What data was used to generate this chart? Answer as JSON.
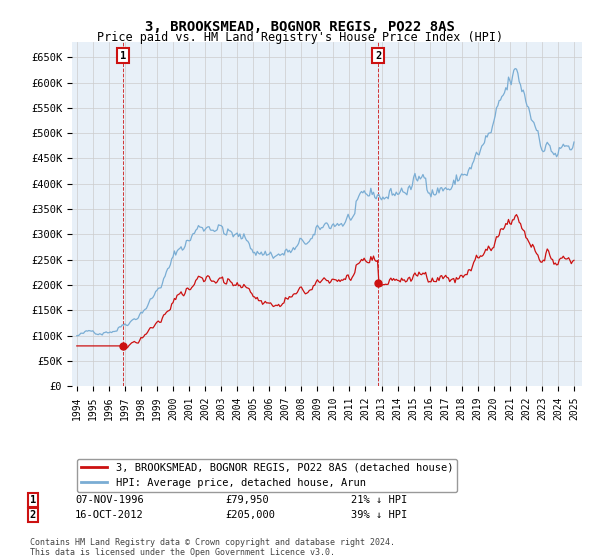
{
  "title": "3, BROOKSMEAD, BOGNOR REGIS, PO22 8AS",
  "subtitle": "Price paid vs. HM Land Registry's House Price Index (HPI)",
  "ylim": [
    0,
    680000
  ],
  "yticks": [
    0,
    50000,
    100000,
    150000,
    200000,
    250000,
    300000,
    350000,
    400000,
    450000,
    500000,
    550000,
    600000,
    650000
  ],
  "ytick_labels": [
    "£0",
    "£50K",
    "£100K",
    "£150K",
    "£200K",
    "£250K",
    "£300K",
    "£350K",
    "£400K",
    "£450K",
    "£500K",
    "£550K",
    "£600K",
    "£650K"
  ],
  "hpi_color": "#7aadd4",
  "price_color": "#cc1111",
  "annotation_box_color": "#cc1111",
  "grid_color": "#cccccc",
  "background_color": "#ffffff",
  "plot_bg_color": "#e8f0f8",
  "legend_entry1": "3, BROOKSMEAD, BOGNOR REGIS, PO22 8AS (detached house)",
  "legend_entry2": "HPI: Average price, detached house, Arun",
  "annotation1_label": "1",
  "annotation1_date": "07-NOV-1996",
  "annotation1_price": "£79,950",
  "annotation1_hpi": "21% ↓ HPI",
  "annotation2_label": "2",
  "annotation2_date": "16-OCT-2012",
  "annotation2_price": "£205,000",
  "annotation2_hpi": "39% ↓ HPI",
  "footnote": "Contains HM Land Registry data © Crown copyright and database right 2024.\nThis data is licensed under the Open Government Licence v3.0.",
  "sale1_year": 1996.88,
  "sale1_price": 79950,
  "sale2_year": 2012.79,
  "sale2_price": 205000,
  "xlim_left": 1993.7,
  "xlim_right": 2025.5,
  "xtick_years": [
    1994,
    1995,
    1996,
    1997,
    1998,
    1999,
    2000,
    2001,
    2002,
    2003,
    2004,
    2005,
    2006,
    2007,
    2008,
    2009,
    2010,
    2011,
    2012,
    2013,
    2014,
    2015,
    2016,
    2017,
    2018,
    2019,
    2020,
    2021,
    2022,
    2023,
    2024,
    2025
  ]
}
